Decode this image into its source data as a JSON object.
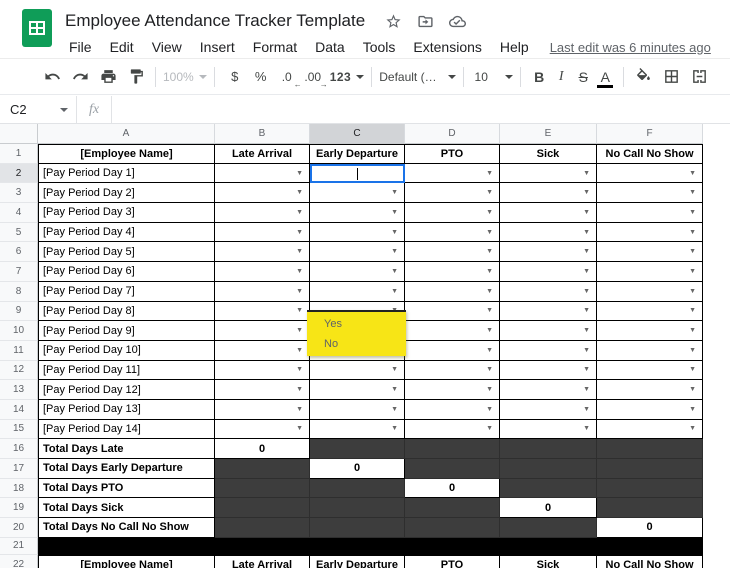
{
  "header": {
    "title": "Employee Attendance Tracker Template",
    "menu_items": [
      "File",
      "Edit",
      "View",
      "Insert",
      "Format",
      "Data",
      "Tools",
      "Extensions",
      "Help"
    ],
    "last_edit": "Last edit was 6 minutes ago"
  },
  "toolbar": {
    "zoom": "100%",
    "currency": "$",
    "percent": "%",
    "decrease_decimal": ".0",
    "increase_decimal": ".00",
    "number_format": "123",
    "font_name": "Default (Ari...",
    "font_size": "10",
    "bold": "B",
    "italic": "I",
    "strikethrough": "S",
    "text_color": "A"
  },
  "formula_bar": {
    "name_box": "C2",
    "fx": "fx",
    "value": ""
  },
  "sheet": {
    "column_letters": [
      "A",
      "B",
      "C",
      "D",
      "E",
      "F"
    ],
    "selected_column": "C",
    "selected_row": "2",
    "dropdown": {
      "options": [
        "Yes",
        "No"
      ]
    },
    "rows": [
      {
        "num": "1",
        "type": "header",
        "first": true,
        "a": "[Employee Name]",
        "b": "Late Arrival",
        "c": "Early Departure",
        "d": "PTO",
        "e": "Sick",
        "f": "No Call No Show"
      },
      {
        "num": "2",
        "type": "day",
        "a": "[Pay Period Day 1]"
      },
      {
        "num": "3",
        "type": "day",
        "a": "[Pay Period Day 2]"
      },
      {
        "num": "4",
        "type": "day",
        "a": "[Pay Period Day 3]"
      },
      {
        "num": "5",
        "type": "day",
        "a": "[Pay Period Day 4]"
      },
      {
        "num": "6",
        "type": "day",
        "a": "[Pay Period Day 5]"
      },
      {
        "num": "7",
        "type": "day",
        "a": "[Pay Period Day 6]"
      },
      {
        "num": "8",
        "type": "day",
        "a": "[Pay Period Day 7]"
      },
      {
        "num": "9",
        "type": "day",
        "a": "[Pay Period Day 8]"
      },
      {
        "num": "10",
        "type": "day",
        "a": "[Pay Period Day 9]"
      },
      {
        "num": "11",
        "type": "day",
        "a": "[Pay Period Day 10]"
      },
      {
        "num": "12",
        "type": "day",
        "a": "[Pay Period Day 11]"
      },
      {
        "num": "13",
        "type": "day",
        "a": "[Pay Period Day 12]"
      },
      {
        "num": "14",
        "type": "day",
        "a": "[Pay Period Day 13]"
      },
      {
        "num": "15",
        "type": "day",
        "a": "[Pay Period Day 14]"
      },
      {
        "num": "16",
        "type": "total",
        "a": "Total Days Late",
        "zero_col": "b",
        "value": "0"
      },
      {
        "num": "17",
        "type": "total",
        "a": "Total Days Early Departure",
        "zero_col": "c",
        "value": "0"
      },
      {
        "num": "18",
        "type": "total",
        "a": "Total Days PTO",
        "zero_col": "d",
        "value": "0"
      },
      {
        "num": "19",
        "type": "total",
        "a": "Total Days Sick",
        "zero_col": "e",
        "value": "0"
      },
      {
        "num": "20",
        "type": "total",
        "a": "Total Days No Call No Show",
        "zero_col": "f",
        "value": "0"
      },
      {
        "num": "21",
        "type": "black"
      },
      {
        "num": "22",
        "type": "header",
        "first": true,
        "a": "[Employee Name]",
        "b": "Late Arrival",
        "c": "Early Departure",
        "d": "PTO",
        "e": "Sick",
        "f": "No Call No Show"
      }
    ]
  },
  "colors": {
    "selection_blue": "#1a73e8",
    "dropdown_yellow": "#f7e516",
    "dark_cell": "#3d3d3d",
    "logo_green": "#0f9d58"
  }
}
